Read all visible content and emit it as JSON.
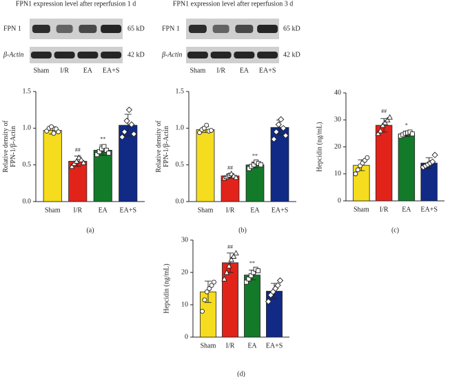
{
  "blots": [
    {
      "title": "FPN1 expression level after reperfusion 1 d",
      "rows": [
        {
          "label": "FPN 1",
          "size": "65 kD"
        },
        {
          "label": "β-Actin",
          "size": "42 kD"
        }
      ],
      "lanes": [
        "Sham",
        "I/R",
        "EA",
        "EA+S"
      ]
    },
    {
      "title": "FPN1 expression level after reperfusion 3 d",
      "rows": [
        {
          "label": "FPN 1",
          "size": "65 kD"
        },
        {
          "label": "β-Actin",
          "size": "42 kD"
        }
      ],
      "lanes": [
        "Sham",
        "I/R",
        "EA",
        "EA+S"
      ]
    }
  ],
  "chart_data": [
    {
      "type": "bar",
      "caption": "(a)",
      "ylabel": [
        "Relative density of",
        "FPN-1/β-Actin"
      ],
      "categories": [
        "Sham",
        "I/R",
        "EA",
        "EA+S"
      ],
      "colors": [
        "#f5dc1e",
        "#e2231a",
        "#137a2a",
        "#102a86"
      ],
      "markers": [
        "circle",
        "triangle",
        "square",
        "diamond"
      ],
      "values": [
        0.97,
        0.55,
        0.7,
        1.04
      ],
      "errors": [
        0.05,
        0.07,
        0.07,
        0.15
      ],
      "points": [
        [
          0.96,
          1.0,
          1.02,
          0.93,
          0.99,
          0.95
        ],
        [
          0.48,
          0.52,
          0.55,
          0.6,
          0.57,
          0.53
        ],
        [
          0.64,
          0.68,
          0.72,
          0.75,
          0.7,
          0.66
        ],
        [
          0.88,
          0.95,
          1.1,
          1.25,
          1.05,
          0.92
        ]
      ],
      "annotations": [
        null,
        "##",
        "**",
        null
      ],
      "ylim": [
        0,
        1.5
      ],
      "yticks": [
        {
          "value": 0,
          "label": "0.0"
        },
        0.5,
        {
          "value": 1,
          "label": "1.0"
        },
        1.5
      ]
    },
    {
      "type": "bar",
      "caption": "(b)",
      "ylabel": [
        "Relative density of",
        "FPN-1/β-Actin"
      ],
      "categories": [
        "Sham",
        "I/R",
        "EA",
        "EA+S"
      ],
      "colors": [
        "#f5dc1e",
        "#e2231a",
        "#137a2a",
        "#102a86"
      ],
      "markers": [
        "circle",
        "triangle",
        "square",
        "diamond"
      ],
      "values": [
        0.98,
        0.35,
        0.5,
        1.01
      ],
      "errors": [
        0.04,
        0.03,
        0.04,
        0.1
      ],
      "points": [
        [
          0.94,
          0.98,
          1.0,
          1.04,
          0.96,
          0.97
        ],
        [
          0.32,
          0.34,
          0.36,
          0.38,
          0.35,
          0.33
        ],
        [
          0.45,
          0.48,
          0.5,
          0.54,
          0.52,
          0.5
        ],
        [
          0.85,
          0.95,
          1.05,
          1.12,
          1.0,
          0.9
        ]
      ],
      "annotations": [
        null,
        "##",
        "**",
        null
      ],
      "ylim": [
        0,
        1.5
      ],
      "yticks": [
        {
          "value": 0,
          "label": "0.0"
        },
        0.5,
        {
          "value": 1,
          "label": "1.0"
        },
        1.5
      ]
    },
    {
      "type": "bar",
      "caption": "(c)",
      "ylabel": [
        "Hepcidin (ng/mL)"
      ],
      "categories": [
        "Sham",
        "I/R",
        "EA",
        "EA+S"
      ],
      "colors": [
        "#f5dc1e",
        "#e2231a",
        "#137a2a",
        "#102a86"
      ],
      "markers": [
        "circle",
        "triangle",
        "square",
        "diamond"
      ],
      "values": [
        13.2,
        28,
        24.8,
        14
      ],
      "errors": [
        2,
        2.5,
        1,
        2
      ],
      "points": [
        [
          10,
          11.5,
          13,
          14,
          15,
          16
        ],
        [
          25,
          26,
          28,
          29,
          30,
          31
        ],
        [
          24,
          24.5,
          25,
          25.2,
          25.5,
          24.8
        ],
        [
          12.5,
          13,
          13.5,
          14,
          14.5,
          17
        ]
      ],
      "annotations": [
        null,
        "##",
        "*",
        null
      ],
      "ylim": [
        0,
        40
      ],
      "yticks": [
        0,
        10,
        20,
        30,
        40
      ]
    },
    {
      "type": "bar",
      "caption": "(d)",
      "ylabel": [
        "Hepcidin (ng/mL)"
      ],
      "categories": [
        "Sham",
        "I/R",
        "EA",
        "EA+S"
      ],
      "colors": [
        "#f5dc1e",
        "#e2231a",
        "#137a2a",
        "#102a86"
      ],
      "markers": [
        "circle",
        "triangle",
        "square",
        "diamond"
      ],
      "values": [
        14,
        23,
        19.2,
        14.2
      ],
      "errors": [
        3.3,
        3,
        1.5,
        2.4
      ],
      "points": [
        [
          8,
          11.5,
          14,
          15,
          16,
          17
        ],
        [
          18,
          20,
          22,
          24,
          25,
          26
        ],
        [
          17,
          18,
          19,
          20,
          21,
          20.5
        ],
        [
          11,
          13,
          14,
          15,
          16,
          17.5
        ]
      ],
      "annotations": [
        null,
        "##",
        "**",
        null
      ],
      "ylim": [
        0,
        30
      ],
      "yticks": [
        0,
        10,
        20,
        30
      ]
    }
  ]
}
